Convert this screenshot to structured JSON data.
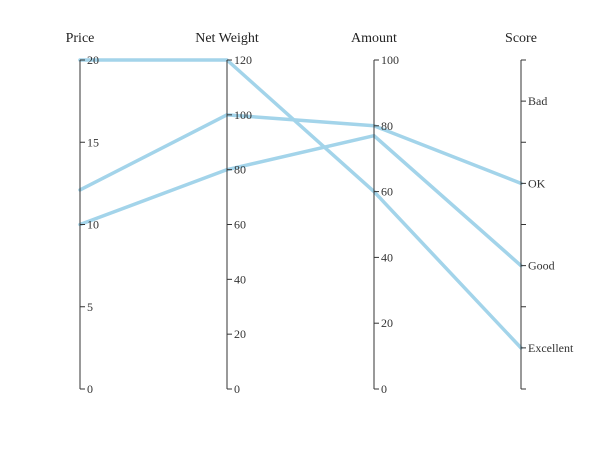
{
  "chart_data": {
    "type": "parallel",
    "title": "",
    "axes": [
      {
        "name": "Price",
        "scale": "linear",
        "range": [
          0,
          20
        ],
        "ticks": [
          0,
          5,
          10,
          15,
          20
        ]
      },
      {
        "name": "Net Weight",
        "scale": "linear",
        "range": [
          0,
          120
        ],
        "ticks": [
          0,
          20,
          40,
          60,
          80,
          100,
          120
        ]
      },
      {
        "name": "Amount",
        "scale": "linear",
        "range": [
          0,
          100
        ],
        "ticks": [
          0,
          20,
          40,
          60,
          80,
          100
        ]
      },
      {
        "name": "Score",
        "scale": "category",
        "categories": [
          "Excellent",
          "Good",
          "OK",
          "Bad"
        ]
      }
    ],
    "series": [
      {
        "values": [
          12.1,
          100,
          80,
          "OK"
        ]
      },
      {
        "values": [
          10,
          80,
          77,
          "Good"
        ]
      },
      {
        "values": [
          20,
          120,
          60,
          "Excellent"
        ]
      }
    ],
    "line_color": "#a3d4ea"
  }
}
